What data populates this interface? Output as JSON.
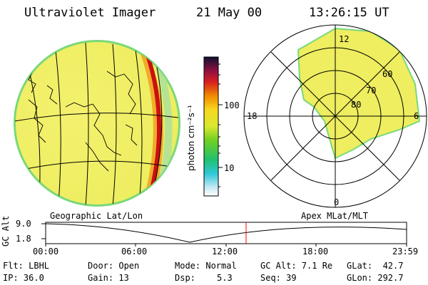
{
  "header": {
    "instrument": "Ultraviolet Imager",
    "date": "21 May 00",
    "time": "13:26:15 UT"
  },
  "colorbar": {
    "unit_label": "photon cm⁻²s⁻¹",
    "ticks": [
      "100",
      "10"
    ],
    "scale": "log"
  },
  "polar_plot": {
    "mlt_labels": [
      "12",
      "18",
      "6",
      "0"
    ],
    "mlat_labels": [
      "60",
      "70",
      "80"
    ]
  },
  "timeline": {
    "ylabel": "GC Alt",
    "y_ticks": [
      "9.0",
      "1.8"
    ],
    "left_caption": "Geographic Lat/Lon",
    "right_caption": "Apex MLat/MLT",
    "x_ticks": [
      "00:00",
      "06:00",
      "12:00",
      "18:00",
      "23:59"
    ],
    "current_marker_time": "13:26"
  },
  "info": {
    "filter": "Flt: LBHL",
    "ip": "IP: 36.0",
    "door": "Door: Open",
    "gain": "Gain: 13",
    "mode": "Mode: Normal",
    "dsp_label": "Dsp:",
    "dsp_value": "5.3",
    "gc_alt": "GC Alt: 7.1 Re",
    "seq": "Seq: 39",
    "glat": "GLat:  42.7",
    "glon": "GLon: 292.7"
  },
  "colors": {
    "aurora_bright": "#cc1010",
    "aurora_glow": "#f08a00",
    "disk_base": "#f2ef6a",
    "marker": "#ff0000"
  }
}
